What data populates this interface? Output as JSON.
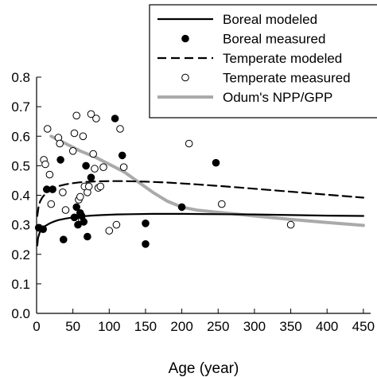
{
  "chart_data": {
    "type": "scatter",
    "xlabel": "Age (year)",
    "ylabel": "",
    "title": "",
    "xlim": [
      0,
      460
    ],
    "ylim": [
      0,
      0.8
    ],
    "xticks": [
      0,
      50,
      100,
      150,
      200,
      250,
      300,
      350,
      400,
      450
    ],
    "yticks": [
      0.0,
      0.1,
      0.2,
      0.3,
      0.4,
      0.5,
      0.6,
      0.7,
      0.8
    ],
    "legend_position": "top-right",
    "series": [
      {
        "name": "Boreal modeled",
        "kind": "line",
        "style": "solid",
        "color": "#000000",
        "x": [
          1,
          2,
          4,
          6,
          9,
          12,
          16,
          20,
          25,
          30,
          40,
          50,
          60,
          75,
          90,
          110,
          130,
          160,
          200,
          250,
          300,
          350,
          400,
          450
        ],
        "y": [
          0.23,
          0.255,
          0.272,
          0.282,
          0.29,
          0.296,
          0.302,
          0.307,
          0.312,
          0.316,
          0.321,
          0.325,
          0.328,
          0.331,
          0.333,
          0.335,
          0.336,
          0.337,
          0.337,
          0.336,
          0.335,
          0.333,
          0.331,
          0.33
        ]
      },
      {
        "name": "Boreal measured",
        "kind": "scatter",
        "marker": "filled",
        "color": "#000000",
        "x": [
          3,
          9,
          14,
          22,
          33,
          37,
          52,
          55,
          57,
          60,
          62,
          65,
          68,
          70,
          75,
          108,
          118,
          150,
          150,
          200,
          247
        ],
        "y": [
          0.29,
          0.285,
          0.42,
          0.42,
          0.52,
          0.25,
          0.325,
          0.36,
          0.3,
          0.34,
          0.33,
          0.31,
          0.5,
          0.26,
          0.46,
          0.66,
          0.535,
          0.305,
          0.235,
          0.36,
          0.51
        ]
      },
      {
        "name": "Temperate modeled",
        "kind": "line",
        "style": "dashed",
        "color": "#000000",
        "x": [
          1,
          3,
          5,
          8,
          12,
          16,
          20,
          25,
          30,
          40,
          50,
          60,
          80,
          100,
          120,
          150,
          180,
          220,
          260,
          300,
          350,
          400,
          450
        ],
        "y": [
          0.33,
          0.365,
          0.38,
          0.393,
          0.405,
          0.413,
          0.42,
          0.426,
          0.431,
          0.437,
          0.441,
          0.444,
          0.447,
          0.448,
          0.448,
          0.446,
          0.443,
          0.437,
          0.43,
          0.422,
          0.412,
          0.402,
          0.392
        ]
      },
      {
        "name": "Temperate measured",
        "kind": "scatter",
        "marker": "open",
        "color": "#000000",
        "x": [
          10,
          12,
          15,
          18,
          20,
          30,
          32,
          36,
          40,
          50,
          52,
          55,
          58,
          60,
          62,
          64,
          66,
          70,
          72,
          75,
          78,
          80,
          82,
          85,
          88,
          92,
          100,
          110,
          115,
          120,
          210,
          255,
          350
        ],
        "y": [
          0.52,
          0.505,
          0.625,
          0.47,
          0.37,
          0.595,
          0.575,
          0.41,
          0.35,
          0.55,
          0.61,
          0.67,
          0.385,
          0.395,
          0.32,
          0.6,
          0.43,
          0.41,
          0.43,
          0.675,
          0.54,
          0.49,
          0.66,
          0.425,
          0.43,
          0.495,
          0.28,
          0.3,
          0.625,
          0.495,
          0.575,
          0.37,
          0.3
        ]
      },
      {
        "name": "Odum's NPP/GPP",
        "kind": "line",
        "style": "solid",
        "color": "#aaaaaa",
        "x": [
          20,
          40,
          60,
          80,
          100,
          120,
          140,
          160,
          180,
          200,
          220,
          250,
          280,
          300,
          350,
          400,
          450
        ],
        "y": [
          0.6,
          0.575,
          0.55,
          0.53,
          0.505,
          0.48,
          0.445,
          0.41,
          0.38,
          0.36,
          0.35,
          0.342,
          0.335,
          0.33,
          0.318,
          0.308,
          0.298
        ]
      }
    ]
  }
}
